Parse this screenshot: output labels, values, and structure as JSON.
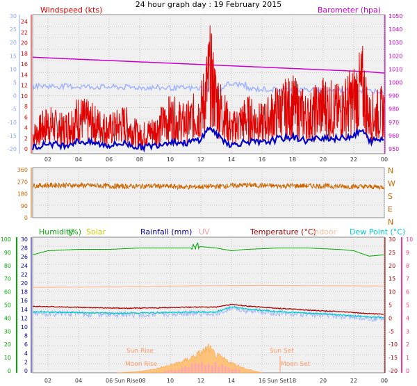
{
  "title": "24 hour graph day : 19 February 2015",
  "colors": {
    "wind": "#e00000",
    "gust_avg": "#0000c8",
    "barometer": "#cc00cc",
    "temp_left_axis": "#8aa8ff",
    "direction": "#cc6600",
    "humidity": "#00aa00",
    "solar": "#cccc00",
    "rainfall": "#0000aa",
    "uv": "#ff9999",
    "temperature": "#aa0000",
    "indoor": "#ffbb99",
    "dewpoint": "#00cccc",
    "right_temp_axis": "#ff3388",
    "grid": "#c8c8c8",
    "plot_bg": "#f0f0f0"
  },
  "x_ticks": [
    "02",
    "04",
    "06",
    "08",
    "10",
    "12",
    "14",
    "16",
    "18",
    "20",
    "22",
    "00"
  ],
  "panel1": {
    "left_label": "Windspeed (kts)",
    "right_label": "Barometer (hpa)",
    "left_ticks": [
      "24",
      "22",
      "20",
      "18",
      "16",
      "14",
      "12",
      "10",
      "8",
      "6",
      "4",
      "2",
      "0"
    ],
    "left_outer_ticks": [
      "30",
      "25",
      "20",
      "15",
      "10",
      "5",
      "0",
      "-5",
      "-10",
      "-15",
      "-20"
    ],
    "right_ticks": [
      "1050",
      "1040",
      "1030",
      "1020",
      "1010",
      "1000",
      "990",
      "980",
      "970",
      "960",
      "950"
    ]
  },
  "panel2": {
    "left_ticks": [
      "360",
      "270",
      "180",
      "90",
      "0"
    ],
    "right_letters": [
      "N",
      "W",
      "S",
      "E",
      "N"
    ]
  },
  "panel3": {
    "legend": {
      "humidity": "Humidity",
      "humidity_unit": "(%)",
      "solar": "Solar",
      "rainfall": "Rainfall (mm)",
      "uv": "UV",
      "temperature": "Temperature (°C)",
      "indoor": "Indoor",
      "dewpoint": "Dew Point (°C)"
    },
    "humidity_ticks": [
      "100",
      "90",
      "80",
      "70",
      "60",
      "50",
      "40",
      "30",
      "20",
      "10",
      "0"
    ],
    "rain_ticks": [
      "30",
      "28",
      "26",
      "24",
      "22",
      "20",
      "18",
      "16",
      "14",
      "12",
      "10",
      "8",
      "6",
      "4",
      "2",
      "0"
    ],
    "temp_ticks": [
      "30",
      "25",
      "20",
      "15",
      "10",
      "5",
      "0",
      "-5",
      "-10",
      "-15",
      "-20"
    ],
    "uv_ticks": [
      "10",
      "9",
      "8",
      "7",
      "6",
      "5",
      "4",
      "3",
      "2",
      "1",
      "0"
    ],
    "sun_rise": "Sun Rise",
    "sun_set": "Sun Set",
    "moon_rise": "Moon Rise",
    "moon_set": "Moon Set",
    "x_tick_sunrise": "06 Sun Rise08",
    "x_tick_sunset": "16 Sun Set"
  },
  "chart_data": [
    {
      "type": "line",
      "title": "24 hour graph day : 19 February 2015",
      "x_range": [
        "01:00",
        "00:00"
      ],
      "series": [
        {
          "name": "Windspeed (kts)",
          "x": [
            1,
            2,
            3,
            4,
            5,
            6,
            7,
            8,
            9,
            10,
            11,
            12,
            12.6,
            13,
            14,
            15,
            16,
            17,
            18,
            19,
            20,
            21,
            22,
            22.6,
            23,
            24
          ],
          "values": [
            3,
            5,
            4,
            6,
            5,
            4,
            5,
            3,
            4,
            6,
            5,
            7,
            13,
            9,
            4,
            6,
            5,
            7,
            8,
            6,
            8,
            7,
            9,
            11,
            6,
            7
          ]
        },
        {
          "name": "Barometer (hpa)",
          "x": [
            1,
            3,
            5,
            7,
            9,
            11,
            13,
            15,
            17,
            19,
            21,
            23,
            24
          ],
          "values": [
            1023,
            1022,
            1021,
            1020,
            1019,
            1018,
            1017,
            1016,
            1015,
            1014,
            1013,
            1012,
            1011
          ]
        }
      ]
    },
    {
      "type": "line",
      "x_range": [
        "01:00",
        "00:00"
      ],
      "ylim": [
        0,
        360
      ],
      "series": [
        {
          "x": [
            1,
            3,
            5,
            7,
            9,
            11,
            13,
            15,
            17,
            19,
            21,
            23,
            24
          ],
          "values": [
            240,
            245,
            240,
            235,
            238,
            230,
            235,
            245,
            238,
            240,
            235,
            232,
            230
          ]
        }
      ]
    },
    {
      "type": "line",
      "x_range": [
        "01:00",
        "00:00"
      ],
      "series": [
        {
          "name": "Humidity",
          "x": [
            1,
            2,
            4,
            6,
            8,
            10,
            11.5,
            12,
            13,
            14,
            15,
            17,
            19,
            21,
            22,
            23,
            24
          ],
          "values": [
            87,
            90,
            91,
            91,
            92,
            92,
            92,
            93,
            92,
            90,
            91,
            92,
            92,
            91,
            90,
            86,
            87
          ]
        },
        {
          "name": "Solar",
          "x": [
            6.5,
            8,
            9,
            10,
            11,
            12,
            12.5,
            13,
            14,
            15,
            16
          ],
          "values": [
            0,
            50,
            150,
            300,
            500,
            800,
            1000,
            700,
            400,
            150,
            0
          ]
        },
        {
          "name": "Temperature (°C)",
          "x": [
            1,
            3,
            5,
            7,
            9,
            11,
            13,
            14,
            15,
            17,
            19,
            21,
            23,
            24
          ],
          "values": [
            4.5,
            4.3,
            4.0,
            3.8,
            3.9,
            4.2,
            4.2,
            5.2,
            4.6,
            3.8,
            3.1,
            2.6,
            1.8,
            1.6
          ]
        },
        {
          "name": "Indoor",
          "x": [
            1,
            4,
            8,
            12,
            16,
            20,
            24
          ],
          "values": [
            11.5,
            11.6,
            11.8,
            12.1,
            12.2,
            12.1,
            12.0
          ]
        },
        {
          "name": "Dew Point (°C)",
          "x": [
            1,
            3,
            5,
            7,
            9,
            11,
            13,
            14,
            15,
            17,
            19,
            21,
            23,
            24
          ],
          "values": [
            2.5,
            2.3,
            2.1,
            2.0,
            2.1,
            2.4,
            2.4,
            4.3,
            3.5,
            2.6,
            2.0,
            1.4,
            0.6,
            0.4
          ]
        }
      ]
    }
  ]
}
